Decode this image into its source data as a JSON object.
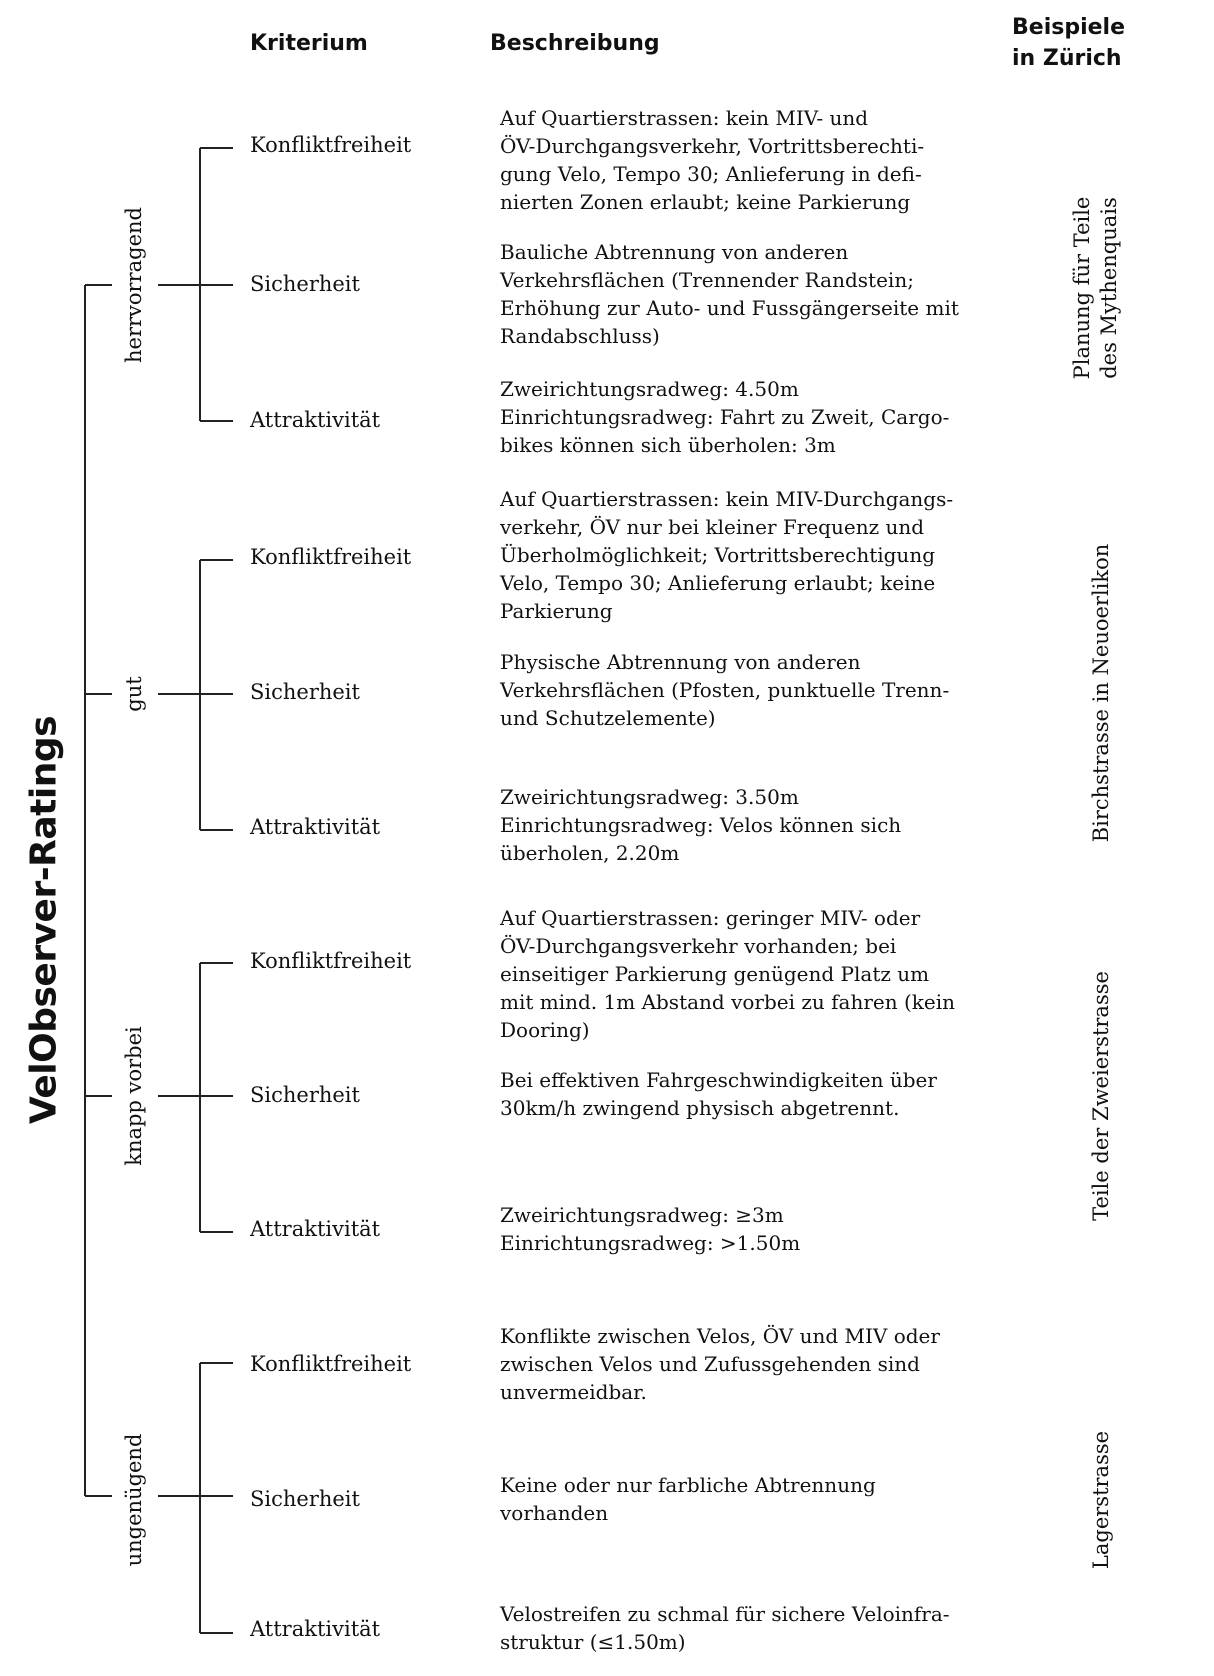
{
  "header": {
    "kriterium": "Kriterium",
    "beschreibung": "Beschreibung",
    "beispiele_line1": "Beispiele",
    "beispiele_line2": "in Zürich"
  },
  "title": "VelObserver-Ratings",
  "ratings": [
    {
      "label": "herrvorragend",
      "example_lines": [
        "Planung für Teile",
        "des Mythenquais"
      ],
      "criteria": [
        {
          "name": "Konfliktfreiheit",
          "description": "Auf Quartierstrassen: kein MIV- und\nÖV-Durchgangsverkehr, Vortrittsberechti-\ngung Velo, Tempo 30; Anlieferung in defi-\nnierten Zonen erlaubt; keine Parkierung"
        },
        {
          "name": "Sicherheit",
          "description": "Bauliche Abtrennung von anderen\nVerkehrsflächen (Trennender Randstein;\nErhöhung zur Auto- und Fussgängerseite mit\nRandabschluss)"
        },
        {
          "name": "Attraktivität",
          "description": "Zweirichtungsradweg: 4.50m\nEinrichtungsradweg: Fahrt zu Zweit, Cargo-\nbikes können sich überholen: 3m"
        }
      ]
    },
    {
      "label": "gut",
      "example_lines": [
        "Birchstrasse in Neuoerlikon"
      ],
      "criteria": [
        {
          "name": "Konfliktfreiheit",
          "description": "Auf Quartierstrassen: kein MIV-Durchgangs-\nverkehr, ÖV nur bei kleiner Frequenz und\nÜberholmöglichkeit; Vortrittsberechtigung\nVelo, Tempo 30; Anlieferung erlaubt; keine\nParkierung"
        },
        {
          "name": "Sicherheit",
          "description": "Physische Abtrennung von anderen\nVerkehrsflächen (Pfosten, punktuelle Trenn-\nund Schutzelemente)"
        },
        {
          "name": "Attraktivität",
          "description": "Zweirichtungsradweg: 3.50m\nEinrichtungsradweg: Velos können sich\nüberholen, 2.20m"
        }
      ]
    },
    {
      "label": "knapp vorbei",
      "example_lines": [
        "Teile der Zweierstrasse"
      ],
      "criteria": [
        {
          "name": "Konfliktfreiheit",
          "description": "Auf Quartierstrassen: geringer MIV- oder\nÖV-Durchgangsverkehr vorhanden; bei\neinseitiger Parkierung genügend Platz um\nmit mind. 1m Abstand vorbei zu fahren (kein\nDooring)"
        },
        {
          "name": "Sicherheit",
          "description": "Bei effektiven Fahrgeschwindigkeiten über\n30km/h zwingend physisch abgetrennt."
        },
        {
          "name": "Attraktivität",
          "description": "Zweirichtungsradweg: ≥3m\nEinrichtungsradweg: >1.50m"
        }
      ]
    },
    {
      "label": "ungenügend",
      "example_lines": [
        "Lagerstrasse"
      ],
      "criteria": [
        {
          "name": "Konfliktfreiheit",
          "description": "Konflikte zwischen Velos, ÖV  und MIV oder\nzwischen Velos und Zufussgehenden sind\nunvermeidbar."
        },
        {
          "name": "Sicherheit",
          "description": "Keine oder nur farbliche Abtrennung\nvorhanden"
        },
        {
          "name": "Attraktivität",
          "description": "Velostreifen zu schmal für sichere Veloinfra-\nstruktur (≤1.50m)"
        }
      ]
    }
  ]
}
